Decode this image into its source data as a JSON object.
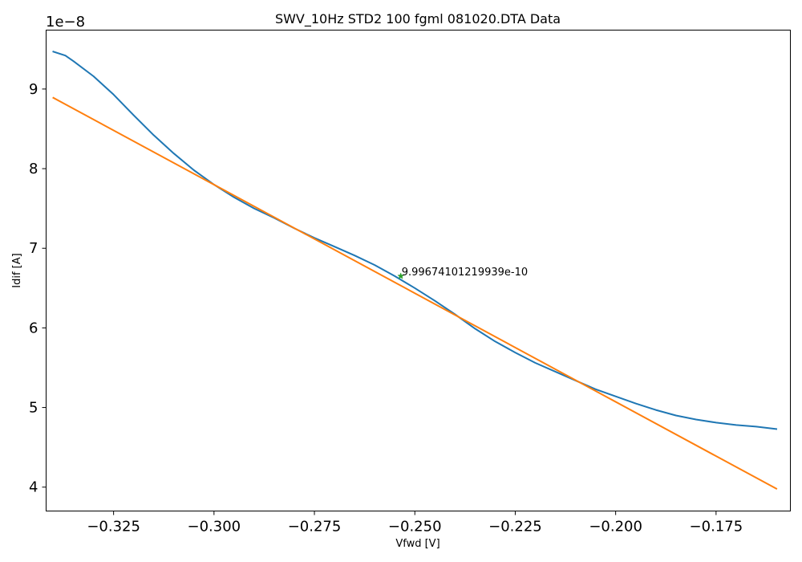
{
  "chart_data": {
    "type": "line",
    "title": "SWV_10Hz STD2 100  fgml 081020.DTA Data",
    "xlabel": "Vfwd [V]",
    "ylabel": "Idif [A]",
    "y_offset_label": "1e−8",
    "xlim": [
      -0.3418,
      -0.1565
    ],
    "ylim": [
      3.7e-08,
      9.74e-08
    ],
    "x_ticks": [
      -0.325,
      -0.3,
      -0.275,
      -0.25,
      -0.225,
      -0.2,
      -0.175
    ],
    "x_tick_labels": [
      "−0.325",
      "−0.300",
      "−0.275",
      "−0.250",
      "−0.225",
      "−0.200",
      "−0.175"
    ],
    "y_ticks": [
      4e-08,
      5e-08,
      6e-08,
      7e-08,
      8e-08,
      9e-08
    ],
    "y_tick_labels": [
      "4",
      "5",
      "6",
      "7",
      "8",
      "9"
    ],
    "grid": false,
    "series": [
      {
        "color": "#1f77b4",
        "x": [
          -0.34,
          -0.337,
          -0.335,
          -0.33,
          -0.325,
          -0.32,
          -0.315,
          -0.31,
          -0.305,
          -0.3,
          -0.295,
          -0.29,
          -0.285,
          -0.28,
          -0.275,
          -0.27,
          -0.265,
          -0.26,
          -0.255,
          -0.25,
          -0.245,
          -0.24,
          -0.235,
          -0.23,
          -0.225,
          -0.22,
          -0.215,
          -0.21,
          -0.205,
          -0.2,
          -0.195,
          -0.19,
          -0.185,
          -0.18,
          -0.175,
          -0.17,
          -0.165,
          -0.16
        ],
        "y": [
          9.47e-08,
          9.42e-08,
          9.35e-08,
          9.16e-08,
          8.93e-08,
          8.67e-08,
          8.42e-08,
          8.19e-08,
          7.98e-08,
          7.8e-08,
          7.64e-08,
          7.5e-08,
          7.38e-08,
          7.25e-08,
          7.13e-08,
          7.02e-08,
          6.91e-08,
          6.79e-08,
          6.65e-08,
          6.5e-08,
          6.34e-08,
          6.17e-08,
          5.99e-08,
          5.83e-08,
          5.69e-08,
          5.56e-08,
          5.45e-08,
          5.34e-08,
          5.23e-08,
          5.14e-08,
          5.05e-08,
          4.97e-08,
          4.9e-08,
          4.85e-08,
          4.81e-08,
          4.78e-08,
          4.76e-08,
          4.73e-08
        ]
      },
      {
        "color": "#ff7f0e",
        "x": [
          -0.34,
          -0.16
        ],
        "y": [
          8.89e-08,
          3.98e-08
        ]
      }
    ],
    "marker": {
      "color": "#2ca02c",
      "symbol": "star",
      "x": -0.2535,
      "y": 6.65e-08
    },
    "annotation": {
      "text": "9.99674101219939e-10",
      "x": -0.2535,
      "y": 6.65e-08
    }
  }
}
